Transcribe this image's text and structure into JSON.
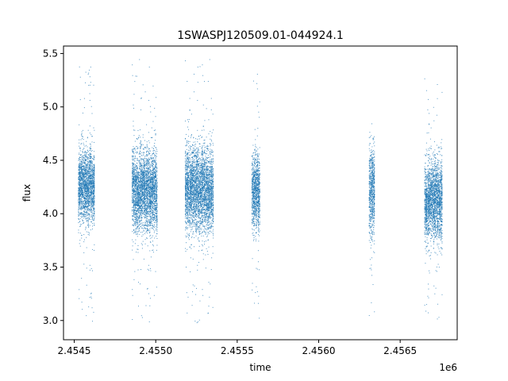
{
  "chart_data": {
    "type": "scatter",
    "title": "1SWASPJ120509.01-044924.1",
    "xlabel": "time",
    "ylabel": "flux",
    "x_offset_label": "1e6",
    "xlim": [
      2454434,
      2456850
    ],
    "ylim": [
      2.82,
      5.57
    ],
    "x_ticks": [
      2454500,
      2455000,
      2455500,
      2456000,
      2456500
    ],
    "x_tick_labels": [
      "2.4545",
      "2.4550",
      "2.4555",
      "2.4560",
      "2.4565"
    ],
    "y_ticks": [
      3.0,
      3.5,
      4.0,
      4.5,
      5.0,
      5.5
    ],
    "y_tick_labels": [
      "3.0",
      "3.5",
      "4.0",
      "4.5",
      "5.0",
      "5.5"
    ],
    "grid": false,
    "marker_color": "#1f77b4",
    "observing_seasons": [
      {
        "t_start": 2454525,
        "t_end": 2454626,
        "flux_center": 4.25,
        "flux_spread": 0.16,
        "flux_min": 2.95,
        "flux_max": 5.45
      },
      {
        "t_start": 2454855,
        "t_end": 2455010,
        "flux_center": 4.22,
        "flux_spread": 0.18,
        "flux_min": 2.95,
        "flux_max": 5.45
      },
      {
        "t_start": 2455180,
        "t_end": 2455355,
        "flux_center": 4.22,
        "flux_spread": 0.19,
        "flux_min": 2.95,
        "flux_max": 5.45
      },
      {
        "t_start": 2455590,
        "t_end": 2455640,
        "flux_center": 4.2,
        "flux_spread": 0.17,
        "flux_min": 2.98,
        "flux_max": 5.38
      },
      {
        "t_start": 2456310,
        "t_end": 2456345,
        "flux_center": 4.2,
        "flux_spread": 0.2,
        "flux_min": 2.95,
        "flux_max": 4.85
      },
      {
        "t_start": 2456650,
        "t_end": 2456760,
        "flux_center": 4.12,
        "flux_spread": 0.18,
        "flux_min": 2.98,
        "flux_max": 5.28
      }
    ]
  }
}
